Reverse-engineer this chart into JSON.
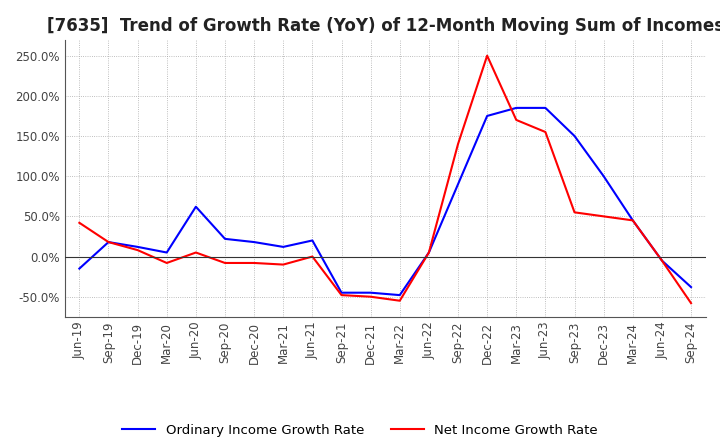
{
  "title": "[7635]  Trend of Growth Rate (YoY) of 12-Month Moving Sum of Incomes",
  "ylim": [
    -75,
    270
  ],
  "yticks": [
    -50,
    0,
    50,
    100,
    150,
    200,
    250
  ],
  "ytick_labels": [
    "-50.0%",
    "0.0%",
    "50.0%",
    "100.0%",
    "150.0%",
    "200.0%",
    "250.0%"
  ],
  "x_labels": [
    "Jun-19",
    "Sep-19",
    "Dec-19",
    "Mar-20",
    "Jun-20",
    "Sep-20",
    "Dec-20",
    "Mar-21",
    "Jun-21",
    "Sep-21",
    "Dec-21",
    "Mar-22",
    "Jun-22",
    "Sep-22",
    "Dec-22",
    "Mar-23",
    "Jun-23",
    "Sep-23",
    "Dec-23",
    "Mar-24",
    "Jun-24",
    "Sep-24"
  ],
  "ordinary_income": [
    -15,
    18,
    12,
    5,
    62,
    22,
    18,
    12,
    20,
    -45,
    -45,
    -48,
    5,
    90,
    175,
    185,
    185,
    150,
    100,
    45,
    -5,
    -38
  ],
  "net_income": [
    42,
    18,
    8,
    -8,
    5,
    -8,
    -8,
    -10,
    0,
    -48,
    -50,
    -55,
    5,
    140,
    250,
    170,
    155,
    55,
    50,
    45,
    -5,
    -58
  ],
  "ordinary_color": "#0000FF",
  "net_color": "#FF0000",
  "line_width": 1.5,
  "title_fontsize": 12,
  "tick_fontsize": 8.5,
  "legend_fontsize": 9.5,
  "grid_color": "#AAAAAA",
  "background_color": "#FFFFFF",
  "plot_bg_color": "#FFFFFF"
}
